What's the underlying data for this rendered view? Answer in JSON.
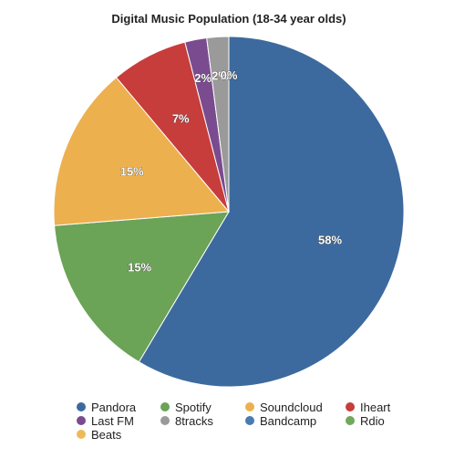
{
  "chart_data": {
    "type": "pie",
    "title": "Digital Music Population (18-34 year olds)",
    "slices": [
      {
        "label": "Pandora",
        "value": 58,
        "value_label": "58%",
        "color": "#3d6a9e"
      },
      {
        "label": "Spotify",
        "value": 15,
        "value_label": "15%",
        "color": "#6ba357"
      },
      {
        "label": "Soundcloud",
        "value": 15,
        "value_label": "15%",
        "color": "#edb04f"
      },
      {
        "label": "Iheart",
        "value": 7,
        "value_label": "7%",
        "color": "#c63d3b"
      },
      {
        "label": "Last FM",
        "value": 2,
        "value_label": "2%",
        "color": "#7a4c8f"
      },
      {
        "label": "8tracks",
        "value": 2,
        "value_label": "2%",
        "color": "#9a9a9a"
      },
      {
        "label": "Bandcamp",
        "value": 0,
        "value_label": "0%",
        "color": "#4a7bb0"
      },
      {
        "label": "Rdio",
        "value": 0,
        "value_label": "0%",
        "color": "#72a85c"
      },
      {
        "label": "Beats",
        "value": 0,
        "value_label": "0%",
        "color": "#eeb957"
      }
    ],
    "legend_position": "bottom"
  }
}
